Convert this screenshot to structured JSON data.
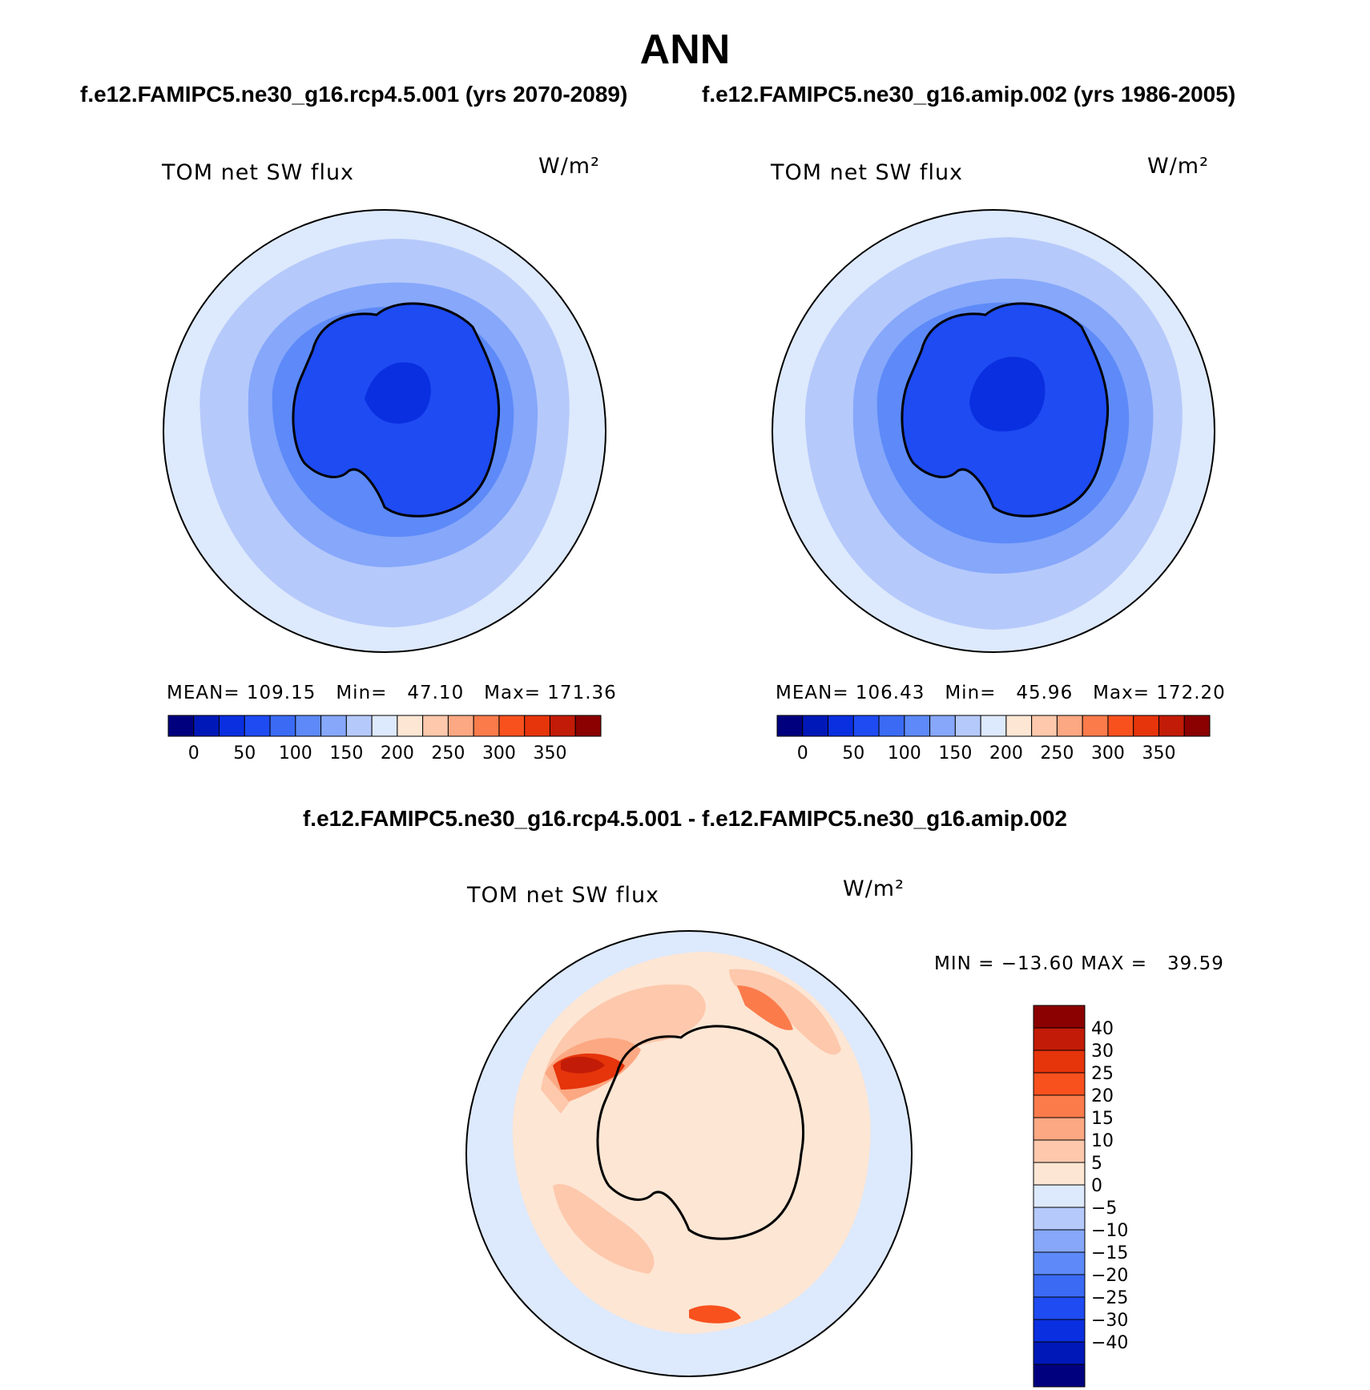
{
  "header": {
    "main_title": "ANN",
    "left_case": "f.e12.FAMIPC5.ne30_g16.rcp4.5.001 (yrs 2070-2089)",
    "right_case": "f.e12.FAMIPC5.ne30_g16.amip.002 (yrs 1986-2005)"
  },
  "panels": [
    {
      "variable": "TOM net SW flux",
      "units": "W/m²",
      "stats": {
        "mean_label": "MEAN=",
        "mean": "109.15",
        "min_label": "Min=",
        "min": "47.10",
        "max_label": "Max=",
        "max": "171.36"
      }
    },
    {
      "variable": "TOM net SW flux",
      "units": "W/m²",
      "stats": {
        "mean_label": "MEAN=",
        "mean": "106.43",
        "min_label": "Min=",
        "min": "45.96",
        "max_label": "Max=",
        "max": "172.20"
      }
    }
  ],
  "colorbar_horizontal": {
    "colors": [
      "#00007f",
      "#0018b8",
      "#0a2fe0",
      "#1e4bf2",
      "#3b6af5",
      "#5d8af8",
      "#86a7fa",
      "#b5c9fb",
      "#dde9fc",
      "#fde6d4",
      "#fdc8ac",
      "#fca882",
      "#fb7b4b",
      "#f8511e",
      "#e6340b",
      "#c21b07",
      "#8b0000"
    ],
    "labels": [
      "0",
      "50",
      "100",
      "150",
      "200",
      "250",
      "300",
      "350"
    ]
  },
  "difference": {
    "title": "f.e12.FAMIPC5.ne30_g16.rcp4.5.001 - f.e12.FAMIPC5.ne30_g16.amip.002",
    "variable": "TOM net SW flux",
    "units": "W/m²",
    "minmax": "MIN = −13.60 MAX =   39.59"
  },
  "colorbar_vertical": {
    "colors": [
      "#8b0000",
      "#c21b07",
      "#e6340b",
      "#f8511e",
      "#fb7b4b",
      "#fca882",
      "#fdc8ac",
      "#fde6d4",
      "#dde9fc",
      "#b5c9fb",
      "#86a7fa",
      "#5d8af8",
      "#3b6af5",
      "#1e4bf2",
      "#0a2fe0",
      "#0018b8",
      "#00007f"
    ],
    "labels": [
      "40",
      "30",
      "25",
      "20",
      "15",
      "10",
      "5",
      "0",
      "−5",
      "−10",
      "−15",
      "−20",
      "−25",
      "−30",
      "−40"
    ]
  }
}
